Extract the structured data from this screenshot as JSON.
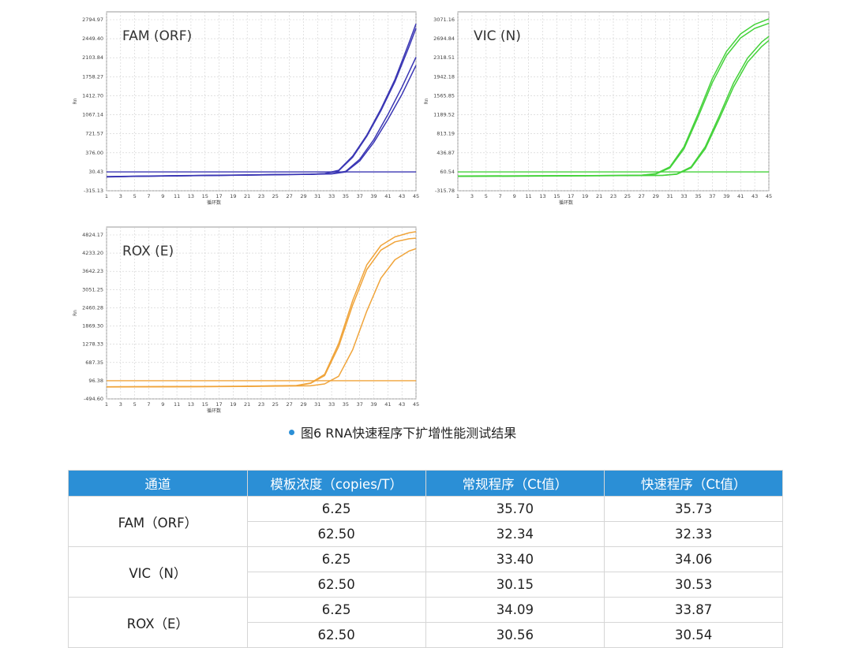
{
  "chart_data": [
    {
      "type": "line",
      "title": "FAM (ORF)",
      "color": "#3a36b4",
      "xlabel": "循环数",
      "ylabel": "Rn",
      "x_ticks": [
        "1",
        "3",
        "5",
        "7",
        "9",
        "11",
        "13",
        "15",
        "17",
        "19",
        "21",
        "23",
        "25",
        "27",
        "29",
        "31",
        "33",
        "35",
        "37",
        "39",
        "41",
        "43",
        "45"
      ],
      "y_ticks": [
        "2794.97",
        "2449.40",
        "2103.84",
        "1758.27",
        "1412.70",
        "1067.14",
        "721.57",
        "376.00",
        "30.43",
        "-315.13"
      ],
      "xlim": [
        1,
        45
      ],
      "ylim": [
        -315.13,
        2960
      ],
      "threshold": 30.43,
      "series": [
        {
          "x": [
            1,
            5,
            10,
            15,
            20,
            25,
            30,
            32,
            34,
            36,
            38,
            40,
            42,
            44,
            45
          ],
          "y": [
            -60,
            -50,
            -42,
            -35,
            -28,
            -20,
            -12,
            0,
            60,
            320,
            700,
            1180,
            1720,
            2390,
            2740
          ]
        },
        {
          "x": [
            1,
            5,
            10,
            15,
            20,
            25,
            30,
            32,
            34,
            36,
            38,
            40,
            42,
            44,
            45
          ],
          "y": [
            -62,
            -52,
            -44,
            -37,
            -30,
            -22,
            -14,
            -2,
            50,
            300,
            680,
            1150,
            1680,
            2320,
            2660
          ]
        },
        {
          "x": [
            1,
            5,
            10,
            15,
            20,
            25,
            30,
            33,
            35,
            37,
            39,
            41,
            43,
            45
          ],
          "y": [
            -56,
            -48,
            -40,
            -33,
            -26,
            -18,
            -12,
            -4,
            40,
            260,
            620,
            1080,
            1580,
            2130
          ]
        },
        {
          "x": [
            1,
            5,
            10,
            15,
            20,
            25,
            30,
            33,
            35,
            37,
            39,
            41,
            43,
            45
          ],
          "y": [
            -58,
            -50,
            -42,
            -35,
            -28,
            -20,
            -14,
            -6,
            30,
            230,
            570,
            990,
            1450,
            1980
          ]
        }
      ]
    },
    {
      "type": "line",
      "title": "VIC (N)",
      "color": "#44d23a",
      "xlabel": "循环数",
      "ylabel": "Rn",
      "x_ticks": [
        "1",
        "3",
        "5",
        "7",
        "9",
        "11",
        "13",
        "15",
        "17",
        "19",
        "21",
        "23",
        "25",
        "27",
        "29",
        "31",
        "33",
        "35",
        "37",
        "39",
        "41",
        "43",
        "45"
      ],
      "y_ticks": [
        "3071.16",
        "2694.84",
        "2318.51",
        "1942.18",
        "1565.85",
        "1189.52",
        "813.19",
        "436.87",
        "60.54",
        "-315.78"
      ],
      "xlim": [
        1,
        45
      ],
      "ylim": [
        -315.78,
        3250
      ],
      "threshold": 60.54,
      "series": [
        {
          "x": [
            1,
            10,
            20,
            27,
            29,
            31,
            33,
            35,
            37,
            39,
            41,
            43,
            45
          ],
          "y": [
            -20,
            -18,
            -12,
            -5,
            25,
            160,
            560,
            1220,
            1920,
            2460,
            2810,
            3000,
            3110
          ]
        },
        {
          "x": [
            1,
            10,
            20,
            27,
            29,
            31,
            33,
            35,
            37,
            39,
            41,
            43,
            45
          ],
          "y": [
            -22,
            -20,
            -14,
            -7,
            18,
            140,
            520,
            1160,
            1840,
            2380,
            2730,
            2920,
            3020
          ]
        },
        {
          "x": [
            1,
            10,
            20,
            30,
            32,
            34,
            36,
            38,
            40,
            42,
            44,
            45
          ],
          "y": [
            -25,
            -22,
            -16,
            -8,
            20,
            160,
            560,
            1180,
            1830,
            2330,
            2650,
            2760
          ]
        },
        {
          "x": [
            1,
            10,
            20,
            30,
            32,
            34,
            36,
            38,
            40,
            42,
            44,
            45
          ],
          "y": [
            -28,
            -25,
            -18,
            -10,
            14,
            140,
            520,
            1120,
            1750,
            2250,
            2560,
            2680
          ]
        }
      ]
    },
    {
      "type": "line",
      "title": "ROX (E)",
      "color": "#f0a43a",
      "xlabel": "循环数",
      "ylabel": "Rn",
      "x_ticks": [
        "1",
        "3",
        "5",
        "7",
        "9",
        "11",
        "13",
        "15",
        "17",
        "19",
        "21",
        "23",
        "25",
        "27",
        "29",
        "31",
        "33",
        "35",
        "37",
        "39",
        "41",
        "43",
        "45"
      ],
      "y_ticks": [
        "4824.17",
        "4233.20",
        "3642.23",
        "3051.25",
        "2460.28",
        "1869.30",
        "1278.33",
        "687.35",
        "96.38",
        "-494.60"
      ],
      "xlim": [
        1,
        45
      ],
      "ylim": [
        -494.6,
        5080
      ],
      "threshold": 96.38,
      "series": [
        {
          "x": [
            1,
            10,
            20,
            28,
            30,
            32,
            34,
            36,
            38,
            40,
            42,
            44,
            45
          ],
          "y": [
            -100,
            -95,
            -85,
            -60,
            20,
            300,
            1300,
            2700,
            3850,
            4480,
            4760,
            4890,
            4930
          ]
        },
        {
          "x": [
            1,
            10,
            20,
            28,
            30,
            32,
            34,
            36,
            38,
            40,
            42,
            44,
            45
          ],
          "y": [
            -104,
            -98,
            -88,
            -64,
            10,
            260,
            1200,
            2550,
            3700,
            4330,
            4600,
            4700,
            4720
          ]
        },
        {
          "x": [
            1,
            10,
            20,
            30,
            32,
            34,
            36,
            38,
            40,
            42,
            44,
            45
          ],
          "y": [
            -108,
            -100,
            -92,
            -70,
            -10,
            240,
            1100,
            2350,
            3420,
            4020,
            4300,
            4380
          ]
        }
      ]
    }
  ],
  "caption": "图6 RNA快速程序下扩增性能测试结果",
  "table": {
    "headers": [
      "通道",
      "模板浓度（copies/T）",
      "常规程序（Ct值）",
      "快速程序（Ct值）"
    ],
    "groups": [
      {
        "channel": "FAM（ORF）",
        "rows": [
          [
            "6.25",
            "35.70",
            "35.73"
          ],
          [
            "62.50",
            "32.34",
            "32.33"
          ]
        ]
      },
      {
        "channel": "VIC（N）",
        "rows": [
          [
            "6.25",
            "33.40",
            "34.06"
          ],
          [
            "62.50",
            "30.15",
            "30.53"
          ]
        ]
      },
      {
        "channel": "ROX（E）",
        "rows": [
          [
            "6.25",
            "34.09",
            "33.87"
          ],
          [
            "62.50",
            "30.56",
            "30.54"
          ]
        ]
      }
    ]
  }
}
